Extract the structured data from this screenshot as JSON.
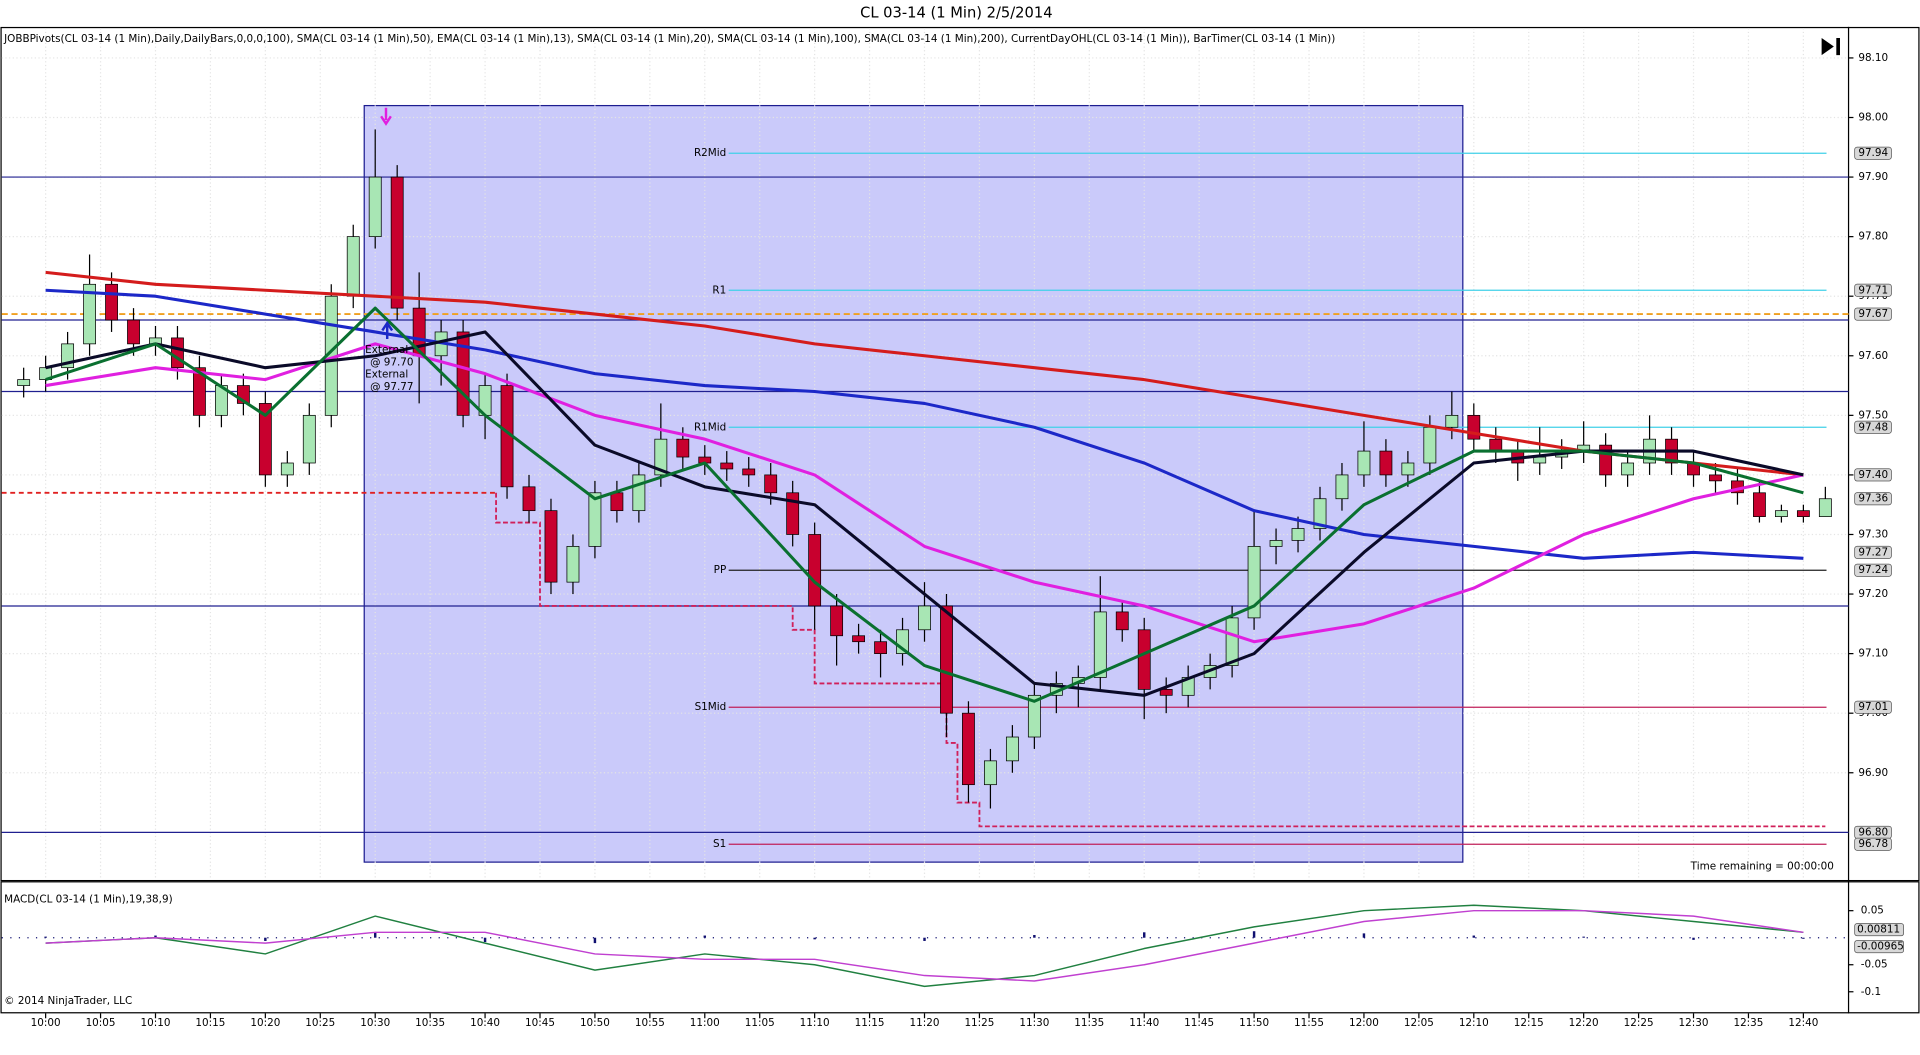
{
  "chart_data": [
    {
      "type": "candlestick",
      "title": "CL 03-14 (1 Min)  2/5/2014",
      "indicators_text": "JOBBPivots(CL 03-14 (1 Min),Daily,DailyBars,0,0,0,100), SMA(CL 03-14 (1 Min),50), EMA(CL 03-14 (1 Min),13), SMA(CL 03-14 (1 Min),20), SMA(CL 03-14 (1 Min),100), SMA(CL 03-14 (1 Min),200), CurrentDayOHL(CL 03-14 (1 Min)), BarTimer(CL 03-14 (1 Min))",
      "time_remaining": "Time remaining = 00:00:00",
      "copyright": "© 2014 NinjaTrader, LLC",
      "annotations": [
        "External",
        "@ 97.70",
        "External",
        "@ 97.77"
      ],
      "up_color": "#a8e6b4",
      "down_color": "#c8002e",
      "x": [
        "09:58",
        "10:00",
        "10:02",
        "10:04",
        "10:06",
        "10:08",
        "10:10",
        "10:12",
        "10:14",
        "10:16",
        "10:18",
        "10:20",
        "10:22",
        "10:24",
        "10:26",
        "10:28",
        "10:30",
        "10:32",
        "10:34",
        "10:36",
        "10:38",
        "10:40",
        "10:42",
        "10:44",
        "10:46",
        "10:48",
        "10:50",
        "10:52",
        "10:54",
        "10:56",
        "10:58",
        "11:00",
        "11:02",
        "11:04",
        "11:06",
        "11:08",
        "11:10",
        "11:12",
        "11:14",
        "11:16",
        "11:18",
        "11:20",
        "11:22",
        "11:24",
        "11:26",
        "11:28",
        "11:30",
        "11:32",
        "11:34",
        "11:36",
        "11:38",
        "11:40",
        "11:42",
        "11:44",
        "11:46",
        "11:48",
        "11:50",
        "11:52",
        "11:54",
        "11:56",
        "11:58",
        "12:00",
        "12:02",
        "12:04",
        "12:06",
        "12:08",
        "12:10",
        "12:12",
        "12:14",
        "12:16",
        "12:18",
        "12:20",
        "12:22",
        "12:24",
        "12:26",
        "12:28",
        "12:30",
        "12:32",
        "12:34",
        "12:36",
        "12:38",
        "12:40",
        "12:42"
      ],
      "open": [
        97.55,
        97.56,
        97.58,
        97.62,
        97.72,
        97.66,
        97.62,
        97.63,
        97.58,
        97.5,
        97.55,
        97.52,
        97.4,
        97.42,
        97.5,
        97.7,
        97.8,
        97.9,
        97.68,
        97.6,
        97.64,
        97.5,
        97.55,
        97.38,
        97.34,
        97.22,
        97.28,
        97.37,
        97.34,
        97.4,
        97.46,
        97.43,
        97.42,
        97.41,
        97.4,
        97.37,
        97.3,
        97.18,
        97.13,
        97.12,
        97.1,
        97.14,
        97.18,
        97.0,
        96.88,
        96.92,
        96.96,
        97.03,
        97.05,
        97.06,
        97.17,
        97.14,
        97.04,
        97.03,
        97.06,
        97.08,
        97.16,
        97.28,
        97.29,
        97.31,
        97.36,
        97.4,
        97.44,
        97.4,
        97.42,
        97.48,
        97.5,
        97.46,
        97.44,
        97.42,
        97.43,
        97.44,
        97.45,
        97.4,
        97.42,
        97.46,
        97.42,
        97.4,
        97.39,
        97.37,
        97.33,
        97.34,
        97.33
      ],
      "high": [
        97.58,
        97.6,
        97.64,
        97.77,
        97.74,
        97.68,
        97.65,
        97.65,
        97.6,
        97.57,
        97.57,
        97.54,
        97.44,
        97.52,
        97.72,
        97.82,
        97.98,
        97.92,
        97.74,
        97.66,
        97.66,
        97.57,
        97.57,
        97.4,
        97.36,
        97.3,
        97.39,
        97.39,
        97.42,
        97.52,
        97.48,
        97.45,
        97.44,
        97.43,
        97.42,
        97.39,
        97.32,
        97.2,
        97.15,
        97.14,
        97.16,
        97.22,
        97.2,
        97.02,
        96.94,
        96.98,
        97.05,
        97.07,
        97.08,
        97.23,
        97.19,
        97.16,
        97.06,
        97.08,
        97.1,
        97.18,
        97.34,
        97.31,
        97.33,
        97.38,
        97.42,
        97.49,
        97.46,
        97.44,
        97.5,
        97.54,
        97.52,
        97.48,
        97.46,
        97.48,
        97.46,
        97.49,
        97.47,
        97.44,
        97.5,
        97.48,
        97.44,
        97.42,
        97.41,
        97.39,
        97.35,
        97.35,
        97.38
      ],
      "low": [
        97.53,
        97.54,
        97.56,
        97.6,
        97.64,
        97.6,
        97.6,
        97.56,
        97.48,
        97.48,
        97.5,
        97.38,
        97.38,
        97.4,
        97.48,
        97.68,
        97.78,
        97.66,
        97.52,
        97.55,
        97.48,
        97.46,
        97.36,
        97.32,
        97.2,
        97.2,
        97.26,
        97.32,
        97.32,
        97.38,
        97.41,
        97.4,
        97.39,
        97.38,
        97.35,
        97.28,
        97.14,
        97.08,
        97.1,
        97.06,
        97.08,
        97.12,
        96.96,
        96.85,
        96.84,
        96.9,
        96.94,
        97.0,
        97.01,
        97.04,
        97.12,
        96.99,
        97.0,
        97.01,
        97.04,
        97.06,
        97.14,
        97.25,
        97.27,
        97.29,
        97.34,
        97.38,
        97.38,
        97.38,
        97.4,
        97.46,
        97.44,
        97.42,
        97.39,
        97.4,
        97.41,
        97.42,
        97.38,
        97.38,
        97.4,
        97.4,
        97.38,
        97.37,
        97.35,
        97.32,
        97.32,
        97.32,
        97.33
      ],
      "close": [
        97.56,
        97.58,
        97.62,
        97.72,
        97.66,
        97.62,
        97.63,
        97.58,
        97.5,
        97.55,
        97.52,
        97.4,
        97.42,
        97.5,
        97.7,
        97.8,
        97.9,
        97.68,
        97.6,
        97.64,
        97.5,
        97.55,
        97.38,
        97.34,
        97.22,
        97.28,
        97.37,
        97.34,
        97.4,
        97.46,
        97.43,
        97.42,
        97.41,
        97.4,
        97.37,
        97.3,
        97.18,
        97.13,
        97.12,
        97.1,
        97.14,
        97.18,
        97.0,
        96.88,
        96.92,
        96.96,
        97.03,
        97.05,
        97.06,
        97.17,
        97.14,
        97.04,
        97.03,
        97.06,
        97.08,
        97.16,
        97.28,
        97.29,
        97.31,
        97.36,
        97.4,
        97.44,
        97.4,
        97.42,
        97.48,
        97.5,
        97.46,
        97.44,
        97.42,
        97.43,
        97.44,
        97.45,
        97.4,
        97.42,
        97.46,
        97.42,
        97.4,
        97.39,
        97.37,
        97.33,
        97.34,
        97.33,
        97.36
      ],
      "line_x": [
        "10:00",
        "10:10",
        "10:20",
        "10:30",
        "10:40",
        "10:50",
        "11:00",
        "11:10",
        "11:20",
        "11:30",
        "11:40",
        "11:50",
        "12:00",
        "12:10",
        "12:20",
        "12:30",
        "12:40"
      ],
      "lines": [
        {
          "color": "#d41c1c",
          "values": [
            97.74,
            97.72,
            97.71,
            97.7,
            97.69,
            97.67,
            97.65,
            97.62,
            97.6,
            97.58,
            97.56,
            97.53,
            97.5,
            97.47,
            97.44,
            97.42,
            97.4
          ]
        },
        {
          "color": "#1c28c8",
          "values": [
            97.71,
            97.7,
            97.67,
            97.64,
            97.61,
            97.57,
            97.55,
            97.54,
            97.52,
            97.48,
            97.42,
            97.34,
            97.3,
            97.28,
            97.26,
            97.27,
            97.26
          ]
        },
        {
          "color": "#e020e0",
          "values": [
            97.55,
            97.58,
            97.56,
            97.62,
            97.57,
            97.5,
            97.46,
            97.4,
            97.28,
            97.22,
            97.18,
            97.12,
            97.15,
            97.21,
            97.3,
            97.36,
            97.4
          ]
        },
        {
          "color": "#0a0a28",
          "values": [
            97.58,
            97.62,
            97.58,
            97.6,
            97.64,
            97.45,
            97.38,
            97.35,
            97.2,
            97.05,
            97.03,
            97.1,
            97.27,
            97.42,
            97.44,
            97.44,
            97.4
          ]
        },
        {
          "color": "#0a7030",
          "values": [
            97.56,
            97.62,
            97.5,
            97.68,
            97.5,
            97.36,
            97.42,
            97.22,
            97.08,
            97.02,
            97.1,
            97.18,
            97.35,
            97.44,
            97.44,
            97.42,
            97.37
          ]
        }
      ],
      "day_low": {
        "color": "#d0205a",
        "x": [
          "10:41",
          "10:41",
          "10:45",
          "10:45",
          "11:08",
          "11:08",
          "11:10",
          "11:10",
          "11:22",
          "11:22",
          "11:23",
          "11:23",
          "11:25",
          "11:25",
          "12:42"
        ],
        "values": [
          97.37,
          97.32,
          97.32,
          97.18,
          97.18,
          97.14,
          97.14,
          97.05,
          97.05,
          96.95,
          96.95,
          96.85,
          96.85,
          96.81,
          96.81
        ]
      },
      "highlight": {
        "color": "#b4b4f8",
        "xlim": [
          "10:29",
          "12:09"
        ],
        "ylim": [
          96.75,
          98.02
        ]
      },
      "pivots": [
        {
          "label": "R2Mid",
          "value": 97.94,
          "color": "#40d0e8"
        },
        {
          "label": "R1",
          "value": 97.71,
          "color": "#40d0e8"
        },
        {
          "label": "R1Mid",
          "value": 97.48,
          "color": "#40d0e8"
        },
        {
          "label": "PP",
          "value": 97.24,
          "color": "#202020"
        },
        {
          "label": "S1Mid",
          "value": 97.01,
          "color": "#c0205a"
        },
        {
          "label": "S1",
          "value": 96.78,
          "color": "#c0205a"
        }
      ],
      "hlines": {
        "color": "#202090",
        "values": [
          97.9,
          97.66,
          97.54,
          97.18,
          96.8
        ]
      },
      "open_line": {
        "color": "#f0a020",
        "value": 97.67
      },
      "prev_line": {
        "color": "#e02020",
        "value": 97.37,
        "xlim": [
          "09:56",
          "10:41"
        ]
      },
      "price_tags": [
        97.94,
        97.71,
        97.67,
        97.48,
        {
          "value": 97.4,
          "label": "97.40"
        },
        97.36,
        97.27,
        97.24,
        97.01,
        {
          "value": 96.8,
          "label": "96.80"
        },
        96.78
      ],
      "xlim": [
        "09:56",
        "12:44"
      ],
      "ylim": [
        96.72,
        98.15
      ],
      "yticks": [
        {
          "value": 96.9,
          "label": "96.90"
        },
        {
          "value": 97,
          "label": "97.00"
        },
        {
          "value": 97.1,
          "label": "97.10"
        },
        {
          "value": 97.2,
          "label": "97.20"
        },
        {
          "value": 97.3,
          "label": "97.30"
        },
        {
          "value": 97.4,
          "label": "97.40"
        },
        {
          "value": 97.5,
          "label": "97.50"
        },
        {
          "value": 97.6,
          "label": "97.60"
        },
        {
          "value": 97.7,
          "label": "97.70"
        },
        {
          "value": 97.8,
          "label": "97.80"
        },
        {
          "value": 97.9,
          "label": "97.90"
        },
        {
          "value": 98,
          "label": "98.00"
        },
        {
          "value": 98.1,
          "label": "98.10"
        }
      ],
      "xticks": [
        "10:00",
        "10:05",
        "10:10",
        "10:15",
        "10:20",
        "10:25",
        "10:30",
        "10:35",
        "10:40",
        "10:45",
        "10:50",
        "10:55",
        "11:00",
        "11:05",
        "11:10",
        "11:15",
        "11:20",
        "11:25",
        "11:30",
        "11:35",
        "11:40",
        "11:45",
        "11:50",
        "11:55",
        "12:00",
        "12:05",
        "12:10",
        "12:15",
        "12:20",
        "12:25",
        "12:30",
        "12:35",
        "12:40"
      ],
      "grid": true
    },
    {
      "type": "macd",
      "title": "MACD(CL 03-14 (1 Min),19,38,9)",
      "x": [
        "10:00",
        "10:10",
        "10:20",
        "10:30",
        "10:40",
        "10:50",
        "11:00",
        "11:10",
        "11:20",
        "11:30",
        "11:40",
        "11:50",
        "12:00",
        "12:10",
        "12:20",
        "12:30",
        "12:40"
      ],
      "series": [
        {
          "color": "#208040",
          "values": [
            -0.01,
            0.0,
            -0.03,
            0.04,
            -0.01,
            -0.06,
            -0.03,
            -0.05,
            -0.09,
            -0.07,
            -0.02,
            0.02,
            0.05,
            0.06,
            0.05,
            0.03,
            0.01
          ]
        },
        {
          "color": "#c040d0",
          "values": [
            -0.01,
            0.0,
            -0.01,
            0.01,
            0.01,
            -0.03,
            -0.04,
            -0.04,
            -0.07,
            -0.08,
            -0.05,
            -0.01,
            0.03,
            0.05,
            0.05,
            0.04,
            0.01
          ]
        }
      ],
      "histogram": {
        "color": "#101070",
        "values": [
          0.002,
          0.004,
          -0.006,
          0.01,
          -0.008,
          -0.01,
          0.004,
          -0.003,
          -0.006,
          0.005,
          0.01,
          0.012,
          0.008,
          0.004,
          0.002,
          -0.004,
          -0.002
        ]
      },
      "tags": [
        0.00811,
        -0.00965
      ],
      "xlim": [
        "09:56",
        "12:44"
      ],
      "ylim": [
        -0.14,
        0.1
      ],
      "yticks": [
        0.05,
        -0.05,
        -0.1
      ]
    }
  ]
}
